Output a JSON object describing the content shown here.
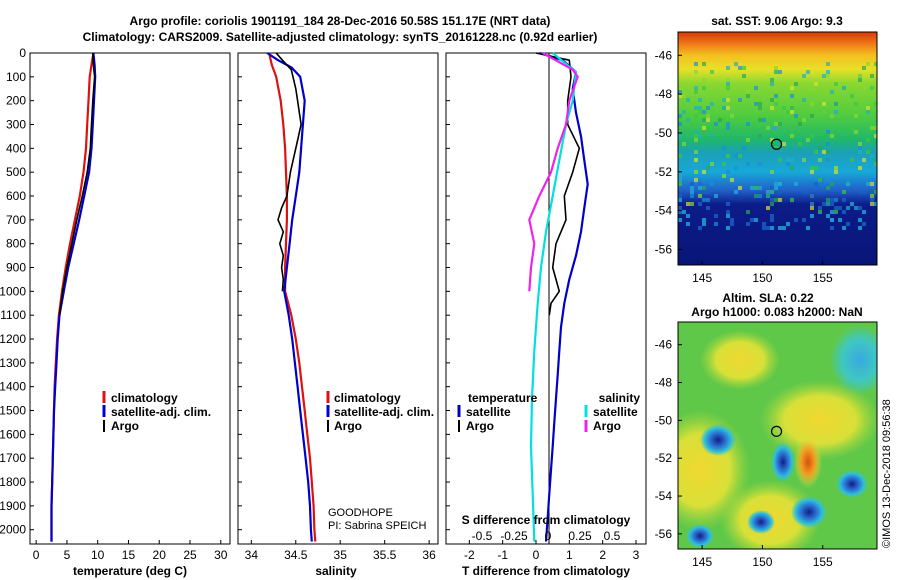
{
  "title_line1": "Argo profile: coriolis 1901191_184 28-Dec-2016 50.58S 151.17E (NRT data)",
  "title_line2": "Climatology: CARS2009. Satellite-adjusted climatology: synTS_20161228.nc (0.92d earlier)",
  "watermark": "©IMOS 13-Dec-2018 09:56:38",
  "colors": {
    "climatology": "#dd1111",
    "satellite": "#0000cc",
    "argo": "#000000",
    "sat_salinity": "#00e0e0",
    "argo_salinity": "#ee22ee"
  },
  "chart_data": [
    {
      "type": "line",
      "id": "temperature",
      "xlabel": "temperature (deg C)",
      "xlim": [
        -1,
        31.5
      ],
      "xticks": [
        0,
        5,
        10,
        15,
        20,
        25,
        30
      ],
      "ylim": [
        2060,
        0
      ],
      "yticks": [
        0,
        100,
        200,
        300,
        400,
        500,
        600,
        700,
        800,
        900,
        1000,
        1100,
        1200,
        1300,
        1400,
        1500,
        1600,
        1700,
        1800,
        1900,
        2000
      ],
      "legend": [
        "climatology",
        "satellite-adj. clim.",
        "Argo"
      ],
      "series": [
        {
          "name": "climatology",
          "color": "#dd1111",
          "points": [
            [
              9.3,
              0
            ],
            [
              9.0,
              50
            ],
            [
              8.7,
              100
            ],
            [
              8.5,
              200
            ],
            [
              8.3,
              300
            ],
            [
              8.1,
              400
            ],
            [
              7.7,
              500
            ],
            [
              7.1,
              600
            ],
            [
              6.3,
              700
            ],
            [
              5.5,
              800
            ],
            [
              4.8,
              900
            ],
            [
              4.2,
              1000
            ],
            [
              3.7,
              1100
            ],
            [
              3.4,
              1200
            ],
            [
              3.2,
              1300
            ],
            [
              3.0,
              1400
            ],
            [
              2.9,
              1500
            ],
            [
              2.8,
              1600
            ],
            [
              2.7,
              1700
            ],
            [
              2.6,
              1800
            ],
            [
              2.5,
              1900
            ],
            [
              2.5,
              2000
            ],
            [
              2.5,
              2050
            ]
          ]
        },
        {
          "name": "satellite-adj. clim.",
          "color": "#0000cc",
          "points": [
            [
              9.3,
              0
            ],
            [
              9.5,
              50
            ],
            [
              9.6,
              100
            ],
            [
              9.4,
              200
            ],
            [
              9.2,
              300
            ],
            [
              9.0,
              400
            ],
            [
              8.6,
              500
            ],
            [
              7.8,
              600
            ],
            [
              7.0,
              700
            ],
            [
              6.1,
              800
            ],
            [
              5.2,
              900
            ],
            [
              4.5,
              1000
            ],
            [
              3.8,
              1100
            ],
            [
              3.5,
              1200
            ],
            [
              3.3,
              1300
            ],
            [
              3.1,
              1400
            ],
            [
              2.9,
              1500
            ],
            [
              2.8,
              1600
            ],
            [
              2.7,
              1700
            ],
            [
              2.6,
              1800
            ],
            [
              2.5,
              1900
            ],
            [
              2.5,
              2000
            ],
            [
              2.5,
              2050
            ]
          ]
        },
        {
          "name": "Argo",
          "color": "#000000",
          "points": [
            [
              9.2,
              0
            ],
            [
              9.3,
              50
            ],
            [
              9.5,
              100
            ],
            [
              9.2,
              200
            ],
            [
              9.0,
              300
            ],
            [
              8.8,
              400
            ],
            [
              8.3,
              500
            ],
            [
              7.5,
              600
            ],
            [
              6.6,
              700
            ],
            [
              5.8,
              800
            ],
            [
              5.0,
              900
            ],
            [
              4.3,
              1000
            ],
            [
              3.8,
              1100
            ]
          ]
        }
      ]
    },
    {
      "type": "line",
      "id": "salinity",
      "xlabel": "salinity",
      "xlim": [
        33.85,
        36.1
      ],
      "xticks": [
        34,
        34.5,
        35,
        35.5,
        36
      ],
      "ylim": [
        2060,
        0
      ],
      "legend": [
        "climatology",
        "satellite-adj. clim.",
        "Argo"
      ],
      "annotations": [
        "GOODHOPE",
        "PI: Sabrina SPEICH"
      ],
      "series": [
        {
          "name": "climatology",
          "color": "#dd1111",
          "points": [
            [
              34.2,
              0
            ],
            [
              34.23,
              50
            ],
            [
              34.28,
              100
            ],
            [
              34.33,
              200
            ],
            [
              34.36,
              300
            ],
            [
              34.38,
              400
            ],
            [
              34.39,
              500
            ],
            [
              34.4,
              600
            ],
            [
              34.4,
              700
            ],
            [
              34.39,
              800
            ],
            [
              34.38,
              900
            ],
            [
              34.38,
              1000
            ],
            [
              34.45,
              1100
            ],
            [
              34.5,
              1200
            ],
            [
              34.54,
              1300
            ],
            [
              34.57,
              1400
            ],
            [
              34.6,
              1500
            ],
            [
              34.63,
              1600
            ],
            [
              34.66,
              1700
            ],
            [
              34.68,
              1800
            ],
            [
              34.7,
              1900
            ],
            [
              34.71,
              2000
            ],
            [
              34.72,
              2050
            ]
          ]
        },
        {
          "name": "satellite-adj. clim.",
          "color": "#0000cc",
          "points": [
            [
              34.18,
              0
            ],
            [
              34.3,
              30
            ],
            [
              34.45,
              60
            ],
            [
              34.55,
              100
            ],
            [
              34.6,
              200
            ],
            [
              34.58,
              300
            ],
            [
              34.56,
              400
            ],
            [
              34.54,
              500
            ],
            [
              34.5,
              600
            ],
            [
              34.46,
              700
            ],
            [
              34.43,
              800
            ],
            [
              34.4,
              900
            ],
            [
              34.37,
              1000
            ],
            [
              34.42,
              1100
            ],
            [
              34.46,
              1200
            ],
            [
              34.49,
              1300
            ],
            [
              34.52,
              1400
            ],
            [
              34.55,
              1500
            ],
            [
              34.58,
              1600
            ],
            [
              34.61,
              1700
            ],
            [
              34.64,
              1800
            ],
            [
              34.66,
              1900
            ],
            [
              34.67,
              2000
            ],
            [
              34.68,
              2050
            ]
          ]
        },
        {
          "name": "Argo",
          "color": "#000000",
          "points": [
            [
              34.28,
              0
            ],
            [
              34.35,
              30
            ],
            [
              34.45,
              70
            ],
            [
              34.5,
              150
            ],
            [
              34.52,
              200
            ],
            [
              34.56,
              300
            ],
            [
              34.5,
              400
            ],
            [
              34.44,
              500
            ],
            [
              34.4,
              600
            ],
            [
              34.34,
              650
            ],
            [
              34.3,
              700
            ],
            [
              34.36,
              750
            ],
            [
              34.32,
              800
            ],
            [
              34.36,
              850
            ],
            [
              34.34,
              900
            ],
            [
              34.36,
              950
            ],
            [
              34.35,
              1000
            ]
          ]
        }
      ]
    },
    {
      "type": "line",
      "id": "difference",
      "xlabel": "T difference from climatology",
      "secondary_xlabel": "S difference from climatology",
      "xlim": [
        -2.7,
        3.3
      ],
      "xticks": [
        -2,
        -1,
        0,
        1,
        2,
        3
      ],
      "secondary_xticks": [
        "-0.5",
        "-0.25",
        "0",
        "0.25",
        "0.5"
      ],
      "ylim": [
        2060,
        0
      ],
      "legend_left_title": "temperature",
      "legend_right_title": "salinity",
      "legend_left": [
        "satellite",
        "Argo"
      ],
      "legend_right": [
        "satellite",
        "Argo"
      ],
      "series": [
        {
          "name": "satellite",
          "group": "temperature",
          "color": "#0000cc",
          "points": [
            [
              0.1,
              0
            ],
            [
              0.8,
              30
            ],
            [
              1.2,
              80
            ],
            [
              1.1,
              150
            ],
            [
              1.2,
              250
            ],
            [
              1.35,
              350
            ],
            [
              1.45,
              450
            ],
            [
              1.55,
              550
            ],
            [
              1.45,
              650
            ],
            [
              1.35,
              750
            ],
            [
              1.2,
              850
            ],
            [
              1.0,
              950
            ],
            [
              0.85,
              1050
            ],
            [
              0.75,
              1150
            ],
            [
              0.7,
              1250
            ],
            [
              0.65,
              1350
            ],
            [
              0.6,
              1450
            ],
            [
              0.55,
              1550
            ],
            [
              0.5,
              1650
            ],
            [
              0.45,
              1750
            ],
            [
              0.4,
              1850
            ],
            [
              0.35,
              1950
            ],
            [
              0.3,
              2050
            ]
          ]
        },
        {
          "name": "Argo",
          "group": "temperature",
          "color": "#000000",
          "points": [
            [
              0.0,
              0
            ],
            [
              1.0,
              30
            ],
            [
              1.05,
              100
            ],
            [
              0.95,
              200
            ],
            [
              0.95,
              300
            ],
            [
              1.3,
              400
            ],
            [
              1.1,
              500
            ],
            [
              0.85,
              600
            ],
            [
              0.9,
              700
            ],
            [
              0.6,
              800
            ],
            [
              0.5,
              900
            ],
            [
              0.7,
              1000
            ],
            [
              0.45,
              1050
            ],
            [
              0.4,
              1100
            ]
          ]
        },
        {
          "name": "satellite",
          "group": "salinity",
          "color": "#00e0e0",
          "points": [
            [
              0.5,
              0
            ],
            [
              1.2,
              80
            ],
            [
              1.1,
              200
            ],
            [
              0.9,
              300
            ],
            [
              0.7,
              450
            ],
            [
              0.5,
              600
            ],
            [
              0.3,
              750
            ],
            [
              0.15,
              900
            ],
            [
              0.05,
              1050
            ],
            [
              -0.05,
              1250
            ],
            [
              -0.12,
              1450
            ],
            [
              -0.15,
              1650
            ],
            [
              -0.1,
              1850
            ],
            [
              -0.05,
              2050
            ]
          ]
        },
        {
          "name": "Argo",
          "group": "salinity",
          "color": "#ee22ee",
          "points": [
            [
              0.2,
              0
            ],
            [
              1.1,
              70
            ],
            [
              1.25,
              100
            ],
            [
              1.0,
              200
            ],
            [
              0.9,
              300
            ],
            [
              0.65,
              400
            ],
            [
              0.45,
              500
            ],
            [
              0.1,
              600
            ],
            [
              -0.2,
              700
            ],
            [
              -0.05,
              800
            ],
            [
              -0.15,
              900
            ],
            [
              -0.2,
              1000
            ]
          ]
        }
      ]
    },
    {
      "type": "heatmap",
      "id": "sst_map",
      "title": "sat. SST: 9.06 Argo: 9.3",
      "xticks": [
        "145",
        "150",
        "155"
      ],
      "yticks": [
        "-46",
        "-48",
        "-50",
        "-52",
        "-54",
        "-56"
      ],
      "xlim": [
        143,
        159.5
      ],
      "ylim": [
        -56.8,
        -44.8
      ],
      "marker": {
        "lon": 151.17,
        "lat": -50.58
      }
    },
    {
      "type": "heatmap",
      "id": "sla_map",
      "title_line1": "Altim. SLA: 0.22",
      "title_line2": "Argo h1000: 0.083 h2000: NaN",
      "xticks": [
        "145",
        "150",
        "155"
      ],
      "yticks": [
        "-46",
        "-48",
        "-50",
        "-52",
        "-54",
        "-56"
      ],
      "xlim": [
        143,
        159.5
      ],
      "ylim": [
        -56.8,
        -44.8
      ],
      "marker": {
        "lon": 151.17,
        "lat": -50.58
      }
    }
  ]
}
